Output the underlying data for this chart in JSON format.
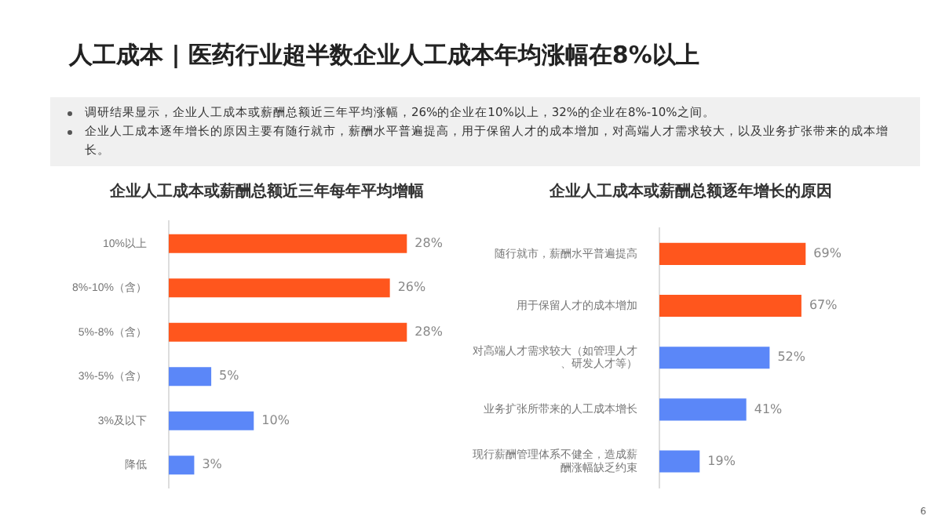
{
  "chart_data": [
    {
      "type": "bar",
      "orientation": "horizontal",
      "title": "企业人工成本或薪酬总额近三年每年平均增幅",
      "categories": [
        "10%以上",
        "8%-10%（含）",
        "5%-8%（含）",
        "3%-5%（含）",
        "3%及以下",
        "降低"
      ],
      "values": [
        28,
        26,
        28,
        5,
        10,
        3
      ],
      "colors": [
        "#ff561d",
        "#ff561d",
        "#ff561d",
        "#5b87f8",
        "#5b87f8",
        "#5b87f8"
      ],
      "value_labels": [
        "28%",
        "26%",
        "28%",
        "5%",
        "10%",
        "3%"
      ],
      "legend": false,
      "annotations": [
        "人工成本 | 医药行业超半数企业人工成本年均涨幅在8%以上",
        "调研结果显示，企业人工成本或薪酬总额近三年平均涨幅，26%的企业在10%以上，32%的企业在8%-10%之间。",
        "企业人工成本逐年增长的原因主要有随行就市，薪酬水平普遍提高，用于保留人才的成本增加，对高端人才需求较大，以及业务扩张带来的成本增长。",
        "6"
      ]
    },
    {
      "type": "bar",
      "orientation": "horizontal",
      "title": "企业人工成本或薪酬总额逐年增长的原因",
      "categories": [
        "随行就市，薪酬水平普遍提高",
        "用于保留人才的成本增加",
        "对高端人才需求较大（如管理人才、研发人才等）",
        "业务扩张所带来的人工成本增长",
        "现行薪酬管理体系不健全，造成薪酬涨幅缺乏约束"
      ],
      "values": [
        69,
        67,
        52,
        41,
        19
      ],
      "colors": [
        "#ff561d",
        "#ff561d",
        "#5b87f8",
        "#5b87f8",
        "#5b87f8"
      ],
      "value_labels": [
        "69%",
        "67%",
        "52%",
        "41%",
        "19%"
      ],
      "legend": false
    }
  ]
}
